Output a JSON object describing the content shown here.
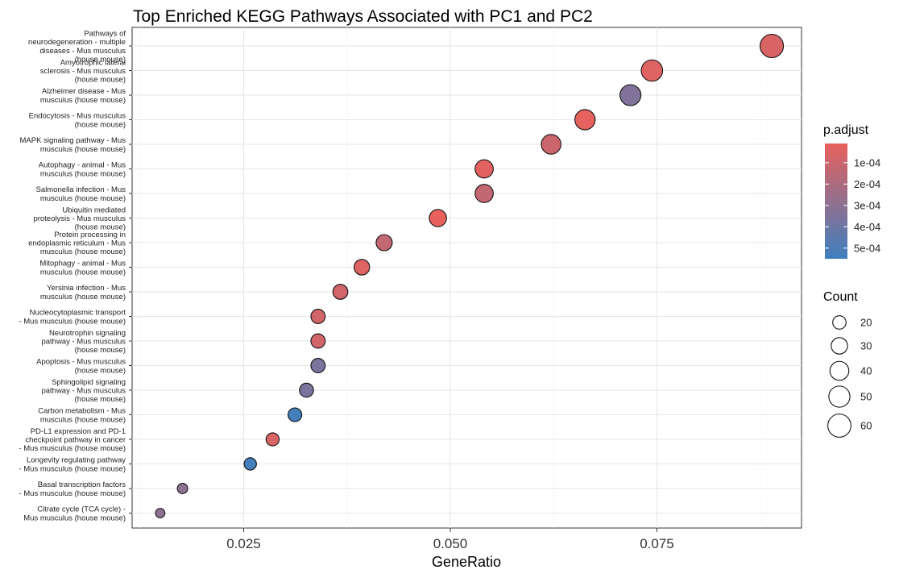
{
  "chart_data": {
    "type": "scatter",
    "title": "Top Enriched KEGG Pathways Associated with PC1 and PC2",
    "xlabel": "GeneRatio",
    "ylabel": "",
    "xlim": [
      0.0115,
      0.0925
    ],
    "xticks": [
      0.025,
      0.05,
      0.075
    ],
    "xtick_labels": [
      "0.025",
      "0.050",
      "0.075"
    ],
    "grid": true,
    "points": [
      {
        "term": "Pathways of neurodegeneration - multiple diseases - Mus musculus (house mouse)",
        "lines": [
          "Pathways of",
          "neurodegeneration - multiple",
          "diseases - Mus musculus",
          "(house mouse)"
        ],
        "x": 0.0889,
        "count": 61,
        "p_adjust": 6e-05
      },
      {
        "term": "Amyotrophic lateral sclerosis - Mus musculus (house mouse)",
        "lines": [
          "Amyotrophic lateral",
          "sclerosis - Mus musculus",
          "(house mouse)"
        ],
        "x": 0.0744,
        "count": 51,
        "p_adjust": 4e-05
      },
      {
        "term": "Alzheimer disease - Mus musculus (house mouse)",
        "lines": [
          "Alzheimer disease - Mus",
          "musculus (house mouse)"
        ],
        "x": 0.0718,
        "count": 49,
        "p_adjust": 0.00034
      },
      {
        "term": "Endocytosis - Mus musculus (house mouse)",
        "lines": [
          "Endocytosis - Mus musculus",
          "(house mouse)"
        ],
        "x": 0.0663,
        "count": 46,
        "p_adjust": 2e-05
      },
      {
        "term": "MAPK signaling pathway - Mus musculus (house mouse)",
        "lines": [
          "MAPK signaling pathway - Mus",
          "musculus (house mouse)"
        ],
        "x": 0.0622,
        "count": 43,
        "p_adjust": 0.0001
      },
      {
        "term": "Autophagy - animal - Mus musculus (house mouse)",
        "lines": [
          "Autophagy - animal - Mus",
          "musculus (house mouse)"
        ],
        "x": 0.0541,
        "count": 37,
        "p_adjust": 3e-05
      },
      {
        "term": "Salmonella infection - Mus musculus (house mouse)",
        "lines": [
          "Salmonella infection - Mus",
          "musculus (house mouse)"
        ],
        "x": 0.0541,
        "count": 37,
        "p_adjust": 0.00013
      },
      {
        "term": "Ubiquitin mediated proteolysis - Mus musculus (house mouse)",
        "lines": [
          "Ubiquitin mediated",
          "proteolysis - Mus musculus",
          "(house mouse)"
        ],
        "x": 0.0485,
        "count": 33,
        "p_adjust": 1e-05
      },
      {
        "term": "Protein processing in endoplasmic reticulum - Mus musculus (house mouse)",
        "lines": [
          "Protein processing in",
          "endoplasmic reticulum - Mus",
          "musculus (house mouse)"
        ],
        "x": 0.042,
        "count": 29,
        "p_adjust": 0.00013
      },
      {
        "term": "Mitophagy - animal - Mus musculus (house mouse)",
        "lines": [
          "Mitophagy - animal - Mus",
          "musculus (house mouse)"
        ],
        "x": 0.0393,
        "count": 27,
        "p_adjust": 4e-05
      },
      {
        "term": "Yersinia infection - Mus musculus (house mouse)",
        "lines": [
          "Yersinia infection - Mus",
          "musculus (house mouse)"
        ],
        "x": 0.0367,
        "count": 25,
        "p_adjust": 8e-05
      },
      {
        "term": "Nucleocytoplasmic transport - Mus musculus (house mouse)",
        "lines": [
          "Nucleocytoplasmic transport",
          "- Mus musculus (house mouse)"
        ],
        "x": 0.034,
        "count": 23,
        "p_adjust": 8e-05
      },
      {
        "term": "Neurotrophin signaling pathway - Mus musculus (house mouse)",
        "lines": [
          "Neurotrophin signaling",
          "pathway - Mus musculus",
          "(house mouse)"
        ],
        "x": 0.034,
        "count": 23,
        "p_adjust": 8e-05
      },
      {
        "term": "Apoptosis - Mus musculus (house mouse)",
        "lines": [
          "Apoptosis - Mus musculus",
          "(house mouse)"
        ],
        "x": 0.034,
        "count": 23,
        "p_adjust": 0.00036
      },
      {
        "term": "Sphingolipid signaling pathway - Mus musculus (house mouse)",
        "lines": [
          "Sphingolipid signaling",
          "pathway - Mus musculus",
          "(house mouse)"
        ],
        "x": 0.0326,
        "count": 22,
        "p_adjust": 0.00036
      },
      {
        "term": "Carbon metabolism - Mus musculus (house mouse)",
        "lines": [
          "Carbon metabolism - Mus",
          "musculus (house mouse)"
        ],
        "x": 0.0312,
        "count": 21,
        "p_adjust": 0.00053
      },
      {
        "term": "PD-L1 expression and PD-1 checkpoint pathway in cancer - Mus musculus (house mouse)",
        "lines": [
          "PD-L1 expression and PD-1",
          "checkpoint pathway in cancer",
          "- Mus musculus (house mouse)"
        ],
        "x": 0.0285,
        "count": 19,
        "p_adjust": 6e-05
      },
      {
        "term": "Longevity regulating pathway - Mus musculus (house mouse)",
        "lines": [
          "Longevity regulating pathway",
          "- Mus musculus (house mouse)"
        ],
        "x": 0.0258,
        "count": 17,
        "p_adjust": 0.00053
      },
      {
        "term": "Basal transcription factors - Mus musculus (house mouse)",
        "lines": [
          "Basal transcription factors",
          "- Mus musculus (house mouse)"
        ],
        "x": 0.0176,
        "count": 12,
        "p_adjust": 0.0003
      },
      {
        "term": "Citrate cycle (TCA cycle) - Mus musculus (house mouse)",
        "lines": [
          "Citrate cycle (TCA cycle) -",
          "Mus musculus (house mouse)"
        ],
        "x": 0.0149,
        "count": 10,
        "p_adjust": 0.0003
      }
    ],
    "legend_color": {
      "title": "p.adjust",
      "placement": "right",
      "low_color": "#e8615d",
      "high_color": "#3e7fbf",
      "range": [
        1e-05,
        0.00055
      ],
      "ticks": [
        0.0001,
        0.0002,
        0.0003,
        0.0004,
        0.0005
      ],
      "tick_labels": [
        "1e-04",
        "2e-04",
        "3e-04",
        "4e-04",
        "5e-04"
      ]
    },
    "legend_size": {
      "title": "Count",
      "placement": "right",
      "values": [
        20,
        30,
        40,
        50,
        60
      ],
      "labels": [
        "20",
        "30",
        "40",
        "50",
        "60"
      ]
    }
  }
}
